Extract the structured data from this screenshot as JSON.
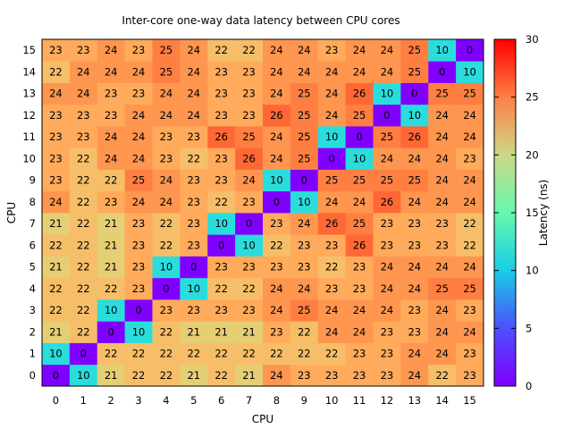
{
  "chart_data": {
    "type": "heatmap",
    "title": "Inter-core one-way data latency between CPU cores",
    "xlabel": "CPU",
    "ylabel": "CPU",
    "colorbar_label": "Latency (ns)",
    "x": [
      "0",
      "1",
      "2",
      "3",
      "4",
      "5",
      "6",
      "7",
      "8",
      "9",
      "10",
      "11",
      "12",
      "13",
      "14",
      "15"
    ],
    "y": [
      "0",
      "1",
      "2",
      "3",
      "4",
      "5",
      "6",
      "7",
      "8",
      "9",
      "10",
      "11",
      "12",
      "13",
      "14",
      "15"
    ],
    "zlim": [
      0,
      30
    ],
    "colorbar_ticks": [
      "0",
      "5",
      "10",
      "15",
      "20",
      "25",
      "30"
    ],
    "colormap": "rainbow",
    "grid": false,
    "rows": [
      [
        0,
        10,
        21,
        22,
        22,
        21,
        22,
        21,
        24,
        23,
        23,
        23,
        23,
        24,
        22,
        23
      ],
      [
        10,
        0,
        22,
        22,
        22,
        22,
        22,
        22,
        22,
        22,
        22,
        23,
        23,
        24,
        24,
        23
      ],
      [
        21,
        22,
        0,
        10,
        22,
        21,
        21,
        21,
        23,
        22,
        24,
        24,
        23,
        23,
        24,
        24
      ],
      [
        22,
        22,
        10,
        0,
        23,
        23,
        23,
        23,
        24,
        25,
        24,
        24,
        24,
        23,
        24,
        23
      ],
      [
        22,
        22,
        22,
        23,
        0,
        10,
        22,
        22,
        24,
        24,
        23,
        23,
        24,
        24,
        25,
        25
      ],
      [
        21,
        22,
        21,
        23,
        10,
        0,
        23,
        23,
        23,
        23,
        22,
        23,
        24,
        24,
        24,
        24
      ],
      [
        22,
        22,
        21,
        23,
        22,
        23,
        0,
        10,
        22,
        23,
        23,
        26,
        23,
        23,
        23,
        22
      ],
      [
        21,
        22,
        21,
        23,
        22,
        23,
        10,
        0,
        23,
        24,
        26,
        25,
        23,
        23,
        23,
        22
      ],
      [
        24,
        22,
        23,
        24,
        24,
        23,
        22,
        23,
        0,
        10,
        24,
        24,
        26,
        24,
        24,
        24
      ],
      [
        23,
        22,
        22,
        25,
        24,
        23,
        23,
        24,
        10,
        0,
        25,
        25,
        25,
        25,
        24,
        24
      ],
      [
        23,
        22,
        24,
        24,
        23,
        22,
        23,
        26,
        24,
        25,
        0,
        10,
        24,
        24,
        24,
        23
      ],
      [
        23,
        23,
        24,
        24,
        23,
        23,
        26,
        25,
        24,
        25,
        10,
        0,
        25,
        26,
        24,
        24
      ],
      [
        23,
        23,
        23,
        24,
        24,
        24,
        23,
        23,
        26,
        25,
        24,
        25,
        0,
        10,
        24,
        24
      ],
      [
        24,
        24,
        23,
        23,
        24,
        24,
        23,
        23,
        24,
        25,
        24,
        26,
        10,
        0,
        25,
        25
      ],
      [
        22,
        24,
        24,
        24,
        25,
        24,
        23,
        23,
        24,
        24,
        24,
        24,
        24,
        25,
        0,
        10
      ],
      [
        23,
        23,
        24,
        23,
        25,
        24,
        22,
        22,
        24,
        24,
        23,
        24,
        24,
        25,
        10,
        0
      ]
    ]
  }
}
